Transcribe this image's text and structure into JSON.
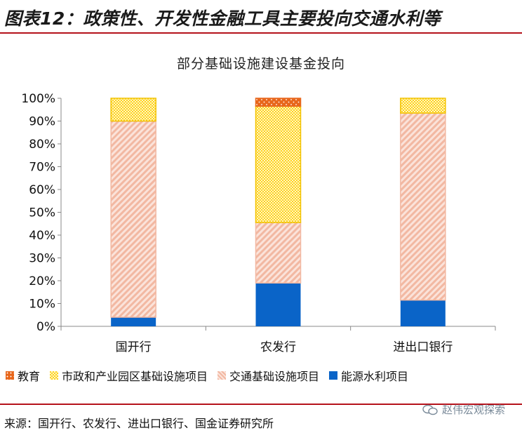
{
  "header": {
    "title": "图表12：政策性、开发性金融工具主要投向交通水利等"
  },
  "chart_data": {
    "type": "bar",
    "stacked": true,
    "title": "部分基础设施建设基金投向",
    "categories": [
      "国开行",
      "农发行",
      "进出口银行"
    ],
    "y_ticks": [
      "0%",
      "10%",
      "20%",
      "30%",
      "40%",
      "50%",
      "60%",
      "70%",
      "80%",
      "90%",
      "100%"
    ],
    "ylim": [
      0,
      100
    ],
    "grid": false,
    "legend_position": "bottom",
    "series": [
      {
        "name": "能源水利项目",
        "values": [
          4,
          19,
          11.5
        ],
        "color": "#0a64c8",
        "pattern": "solid"
      },
      {
        "name": "交通基础设施项目",
        "values": [
          86,
          26.5,
          82
        ],
        "color": "#f2b8a2",
        "pattern": "diagonal"
      },
      {
        "name": "市政和产业园区基础设施项目",
        "values": [
          10,
          51,
          6.5
        ],
        "color": "#ffd21f",
        "pattern": "checker"
      },
      {
        "name": "教育",
        "values": [
          0,
          3.5,
          0
        ],
        "color": "#e8671c",
        "pattern": "dots"
      }
    ]
  },
  "legend_order": [
    3,
    2,
    1,
    0
  ],
  "footer": {
    "source": "来源：国开行、农发行、进出口银行、国金证券研究所",
    "watermark": "赵伟宏观探索"
  }
}
